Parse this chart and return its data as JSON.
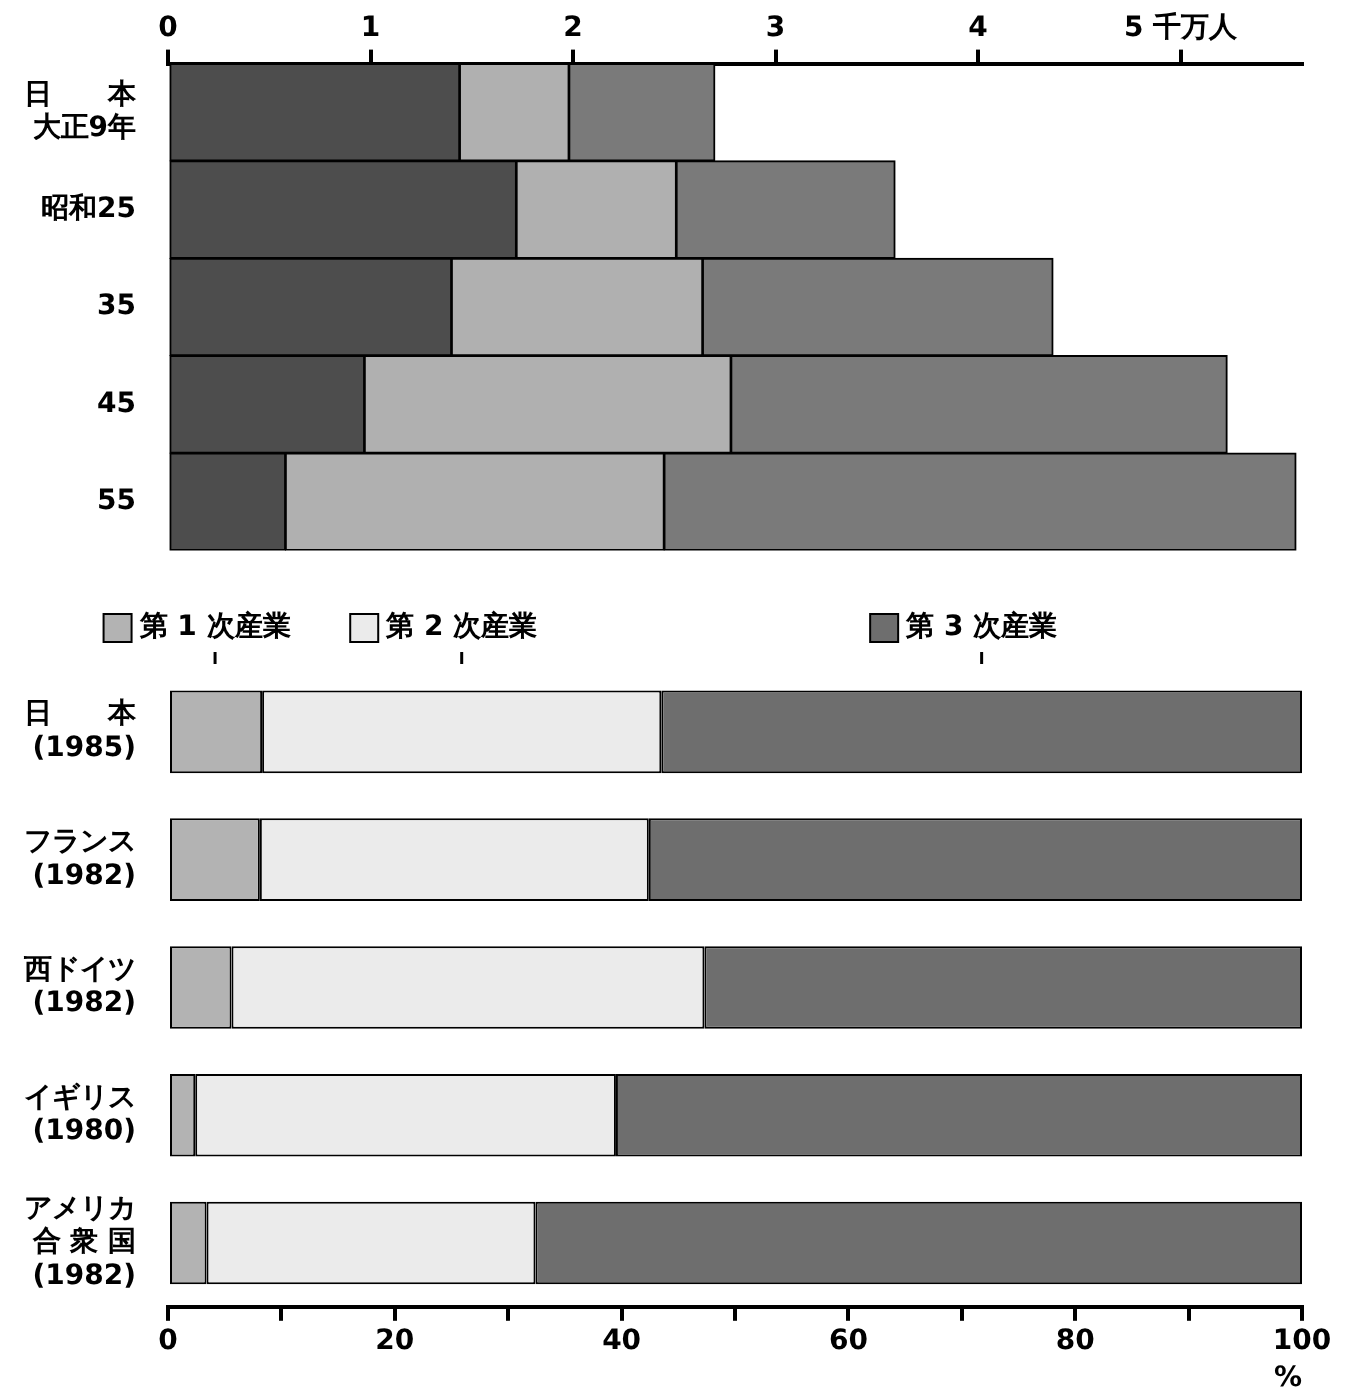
{
  "chart_data": [
    {
      "type": "bar",
      "orientation": "horizontal",
      "stacked": true,
      "categories": [
        "日　　本大正9年",
        "昭和25",
        "35",
        "45",
        "55"
      ],
      "series": [
        {
          "color": "#4d4d4d",
          "values": [
            1.44,
            1.72,
            1.4,
            0.97,
            0.58
          ]
        },
        {
          "color": "#b0b0b0",
          "values": [
            0.54,
            0.79,
            1.24,
            1.81,
            1.87
          ]
        },
        {
          "color": "#7a7a7a",
          "values": [
            0.72,
            1.08,
            1.73,
            2.45,
            3.12
          ]
        }
      ],
      "xlim": [
        0,
        5.6
      ],
      "xticks": [
        0,
        1,
        2,
        3,
        4,
        {
          "value": 5,
          "label": "5 千万人"
        }
      ],
      "grid": false,
      "legend": false
    },
    {
      "type": "bar",
      "orientation": "horizontal",
      "stacked": true,
      "xlabel": "%",
      "categories": [
        "日　　本(1985)",
        "フランス(1982)",
        "西ドイツ(1982)",
        "イギリス(1980)",
        "アメリカ合 衆 国(1982)"
      ],
      "series": [
        {
          "name": "第 1 次産業",
          "color": "#b3b3b3",
          "values": [
            8.3,
            8.1,
            5.6,
            2.4,
            3.4
          ]
        },
        {
          "name": "第 2 次産業",
          "color": "#ebebeb",
          "values": [
            35.2,
            34.3,
            41.7,
            37.1,
            29.0
          ]
        },
        {
          "name": "第 3 次産業",
          "color": "#6e6e6e",
          "values": [
            56.5,
            57.6,
            52.7,
            60.5,
            67.6
          ]
        }
      ],
      "xlim": [
        0,
        100
      ],
      "xticks": [
        0,
        {
          "value": 10,
          "label": null
        },
        20,
        {
          "value": 30,
          "label": null
        },
        40,
        {
          "value": 50,
          "label": null
        },
        60,
        {
          "value": 70,
          "label": null
        },
        80,
        {
          "value": 90,
          "label": null
        },
        100
      ],
      "grid": false,
      "legend": "top"
    }
  ]
}
